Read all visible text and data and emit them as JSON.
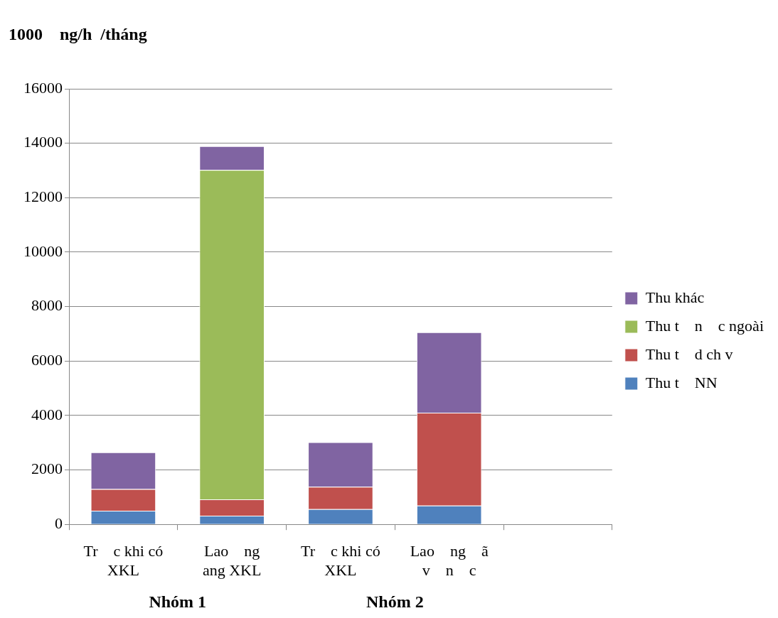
{
  "chart_data": {
    "type": "bar",
    "stacked": true,
    "ylabel": "1000    ng/h  /tháng",
    "categories": [
      "Tr    c khi có XKL",
      "Lao    ng    ang XKL",
      "Tr    c khi có XKL",
      "Lao    ng    ã v    n    c",
      null
    ],
    "series": [
      {
        "name": "Thu t    NN",
        "color": "#4f81bd",
        "values": [
          500,
          320,
          560,
          690,
          null
        ]
      },
      {
        "name": "Thu t    d ch v",
        "color": "#c0504d",
        "values": [
          800,
          600,
          820,
          3410,
          null
        ]
      },
      {
        "name": "Thu t    n    c ngoài",
        "color": "#9bbb59",
        "values": [
          0,
          12100,
          0,
          0,
          null
        ]
      },
      {
        "name": "Thu khác",
        "color": "#8064a2",
        "values": [
          1350,
          870,
          1640,
          2960,
          null
        ]
      }
    ],
    "ylim": [
      0,
      16000
    ],
    "yticks": [
      0,
      2000,
      4000,
      6000,
      8000,
      10000,
      12000,
      14000,
      16000
    ],
    "grid": "y",
    "legend": "right",
    "annotations": [
      "Nhóm 1",
      "Nhóm 2"
    ]
  }
}
